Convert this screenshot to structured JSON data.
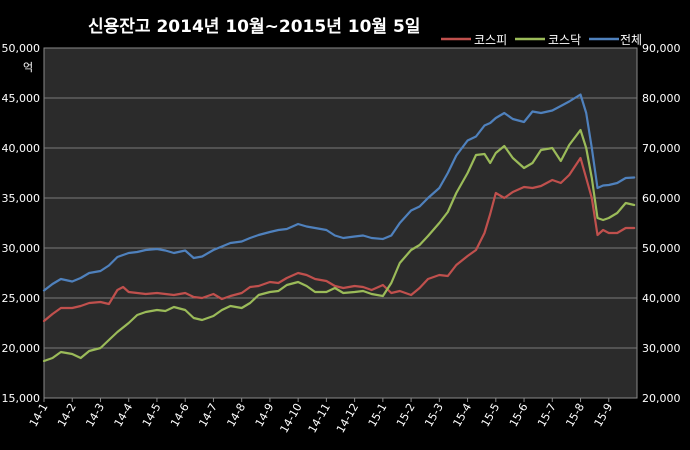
{
  "chart_data": {
    "type": "line",
    "title": "신용잔고 2014년 10월~2015년 10월 5일",
    "ylabel_left": "억",
    "left_axis": {
      "min": 15000,
      "max": 50000,
      "step": 5000
    },
    "right_axis": {
      "min": 20000,
      "max": 90000,
      "step": 10000
    },
    "left_ticks": [
      "15,000",
      "20,000",
      "25,000",
      "30,000",
      "35,000",
      "40,000",
      "45,000",
      "50,000"
    ],
    "right_ticks": [
      "20,000",
      "30,000",
      "40,000",
      "50,000",
      "60,000",
      "70,000",
      "80,000",
      "90,000"
    ],
    "x_ticks": [
      "14-1",
      "14-2",
      "14-3",
      "14-4",
      "14-5",
      "14-6",
      "14-7",
      "14-8",
      "14-9",
      "14-10",
      "14-11",
      "14-12",
      "15-1",
      "15-2",
      "15-3",
      "15-4",
      "15-5",
      "15-6",
      "15-7",
      "15-8",
      "15-9"
    ],
    "legend_position": "top-right",
    "grid": true,
    "series": [
      {
        "name": "코스피",
        "axis": "left",
        "color": "#c0504d",
        "x": [
          0.0,
          0.3,
          0.6,
          1.0,
          1.3,
          1.6,
          2.0,
          2.3,
          2.6,
          2.8,
          3.0,
          3.3,
          3.6,
          4.0,
          4.3,
          4.6,
          5.0,
          5.3,
          5.6,
          6.0,
          6.3,
          6.6,
          7.0,
          7.3,
          7.6,
          8.0,
          8.3,
          8.6,
          9.0,
          9.3,
          9.6,
          10.0,
          10.3,
          10.6,
          11.0,
          11.3,
          11.6,
          12.0,
          12.3,
          12.6,
          13.0,
          13.3,
          13.6,
          14.0,
          14.3,
          14.6,
          15.0,
          15.3,
          15.6,
          15.8,
          16.0,
          16.3,
          16.6,
          17.0,
          17.3,
          17.6,
          18.0,
          18.3,
          18.6,
          19.0,
          19.2,
          19.4,
          19.6,
          19.8,
          20.0,
          20.3,
          20.6,
          20.9
        ],
        "values": [
          22700,
          23400,
          24000,
          24000,
          24200,
          24500,
          24600,
          24400,
          25800,
          26100,
          25600,
          25500,
          25400,
          25500,
          25400,
          25300,
          25500,
          25100,
          25000,
          25400,
          24900,
          25200,
          25500,
          26100,
          26200,
          26600,
          26500,
          27000,
          27500,
          27300,
          26900,
          26700,
          26200,
          26000,
          26200,
          26100,
          25800,
          26300,
          25500,
          25700,
          25300,
          26000,
          26900,
          27300,
          27200,
          28300,
          29200,
          29800,
          31500,
          33400,
          35500,
          35000,
          35600,
          36100,
          36000,
          36200,
          36800,
          36500,
          37300,
          39000,
          37000,
          35000,
          31300,
          31800,
          31500,
          31500,
          32000,
          32000
        ]
      },
      {
        "name": "코스닥",
        "axis": "left",
        "color": "#9bbb59",
        "x": [
          0.0,
          0.3,
          0.6,
          1.0,
          1.3,
          1.6,
          2.0,
          2.3,
          2.6,
          3.0,
          3.3,
          3.6,
          4.0,
          4.3,
          4.6,
          5.0,
          5.3,
          5.6,
          6.0,
          6.3,
          6.6,
          7.0,
          7.3,
          7.6,
          8.0,
          8.3,
          8.6,
          9.0,
          9.3,
          9.6,
          10.0,
          10.3,
          10.6,
          11.0,
          11.3,
          11.6,
          12.0,
          12.3,
          12.6,
          13.0,
          13.3,
          13.6,
          14.0,
          14.3,
          14.6,
          15.0,
          15.3,
          15.6,
          15.8,
          16.0,
          16.3,
          16.6,
          17.0,
          17.3,
          17.6,
          18.0,
          18.3,
          18.6,
          19.0,
          19.2,
          19.4,
          19.6,
          19.8,
          20.0,
          20.3,
          20.6,
          20.9
        ],
        "values": [
          18700,
          19000,
          19600,
          19400,
          19000,
          19700,
          20000,
          20800,
          21600,
          22500,
          23300,
          23600,
          23800,
          23700,
          24100,
          23800,
          23000,
          22800,
          23200,
          23800,
          24200,
          24000,
          24500,
          25300,
          25600,
          25700,
          26300,
          26600,
          26200,
          25600,
          25600,
          26000,
          25500,
          25600,
          25700,
          25400,
          25200,
          26500,
          28500,
          29800,
          30300,
          31200,
          32500,
          33600,
          35500,
          37500,
          39300,
          39400,
          38500,
          39500,
          40200,
          39000,
          38000,
          38500,
          39800,
          40000,
          38700,
          40300,
          41800,
          40000,
          37000,
          33000,
          32800,
          33000,
          33500,
          34500,
          34300
        ]
      },
      {
        "name": "전체",
        "axis": "right",
        "color": "#4f81bd",
        "x": [
          0.0,
          0.3,
          0.6,
          1.0,
          1.3,
          1.6,
          2.0,
          2.3,
          2.6,
          3.0,
          3.3,
          3.6,
          4.0,
          4.3,
          4.6,
          5.0,
          5.3,
          5.6,
          6.0,
          6.3,
          6.6,
          7.0,
          7.3,
          7.6,
          8.0,
          8.3,
          8.6,
          9.0,
          9.3,
          9.6,
          10.0,
          10.3,
          10.6,
          11.0,
          11.3,
          11.6,
          12.0,
          12.3,
          12.6,
          13.0,
          13.3,
          13.6,
          14.0,
          14.3,
          14.6,
          15.0,
          15.3,
          15.6,
          15.8,
          16.0,
          16.3,
          16.6,
          17.0,
          17.3,
          17.6,
          18.0,
          18.3,
          18.6,
          19.0,
          19.2,
          19.4,
          19.6,
          19.8,
          20.0,
          20.3,
          20.6,
          20.9
        ],
        "values": [
          41500,
          42800,
          43800,
          43300,
          44000,
          45000,
          45400,
          46500,
          48200,
          49000,
          49200,
          49600,
          49800,
          49500,
          49000,
          49500,
          48000,
          48300,
          49600,
          50300,
          51000,
          51300,
          52000,
          52600,
          53200,
          53600,
          53800,
          54800,
          54300,
          54000,
          53600,
          52500,
          52000,
          52300,
          52500,
          52000,
          51800,
          52500,
          55000,
          57500,
          58300,
          60000,
          62000,
          65000,
          68500,
          71500,
          72300,
          74500,
          75000,
          76000,
          77000,
          75800,
          75200,
          77300,
          77000,
          77500,
          78400,
          79300,
          80700,
          77000,
          70000,
          62000,
          62500,
          62600,
          63000,
          64000,
          64100
        ]
      }
    ]
  }
}
